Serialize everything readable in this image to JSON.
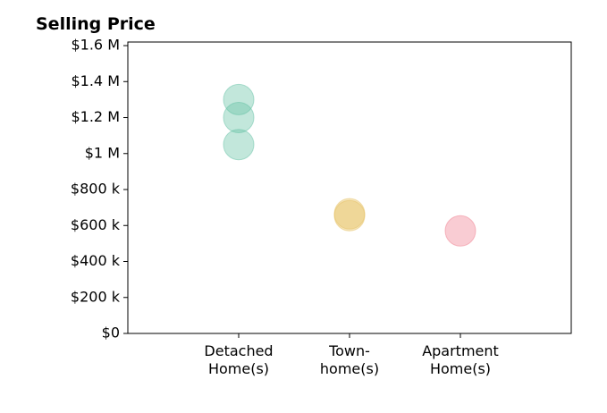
{
  "chart_data": {
    "type": "scatter",
    "title": "Selling Price",
    "xlabel": "",
    "ylabel": "",
    "categories": [
      "Detached\nHome(s)",
      "Town-\nhome(s)",
      "Apartment\nHome(s)"
    ],
    "ylim": [
      0,
      1620000
    ],
    "y_ticks": [
      {
        "value": 0,
        "label": "$0"
      },
      {
        "value": 200000,
        "label": "$200 k"
      },
      {
        "value": 400000,
        "label": "$400 k"
      },
      {
        "value": 600000,
        "label": "$600 k"
      },
      {
        "value": 800000,
        "label": "$800 k"
      },
      {
        "value": 1000000,
        "label": "$1 M"
      },
      {
        "value": 1200000,
        "label": "$1.2 M"
      },
      {
        "value": 1400000,
        "label": "$1.4 M"
      },
      {
        "value": 1600000,
        "label": "$1.6 M"
      }
    ],
    "points": [
      {
        "category": 0,
        "value": 1300000,
        "color": "#66c2a5"
      },
      {
        "category": 0,
        "value": 1200000,
        "color": "#66c2a5"
      },
      {
        "category": 0,
        "value": 1050000,
        "color": "#66c2a5"
      },
      {
        "category": 1,
        "value": 665000,
        "color": "#e5c060"
      },
      {
        "category": 1,
        "value": 655000,
        "color": "#e5c060"
      },
      {
        "category": 2,
        "value": 570000,
        "color": "#f08090"
      }
    ],
    "grid": false,
    "legend": "none"
  }
}
